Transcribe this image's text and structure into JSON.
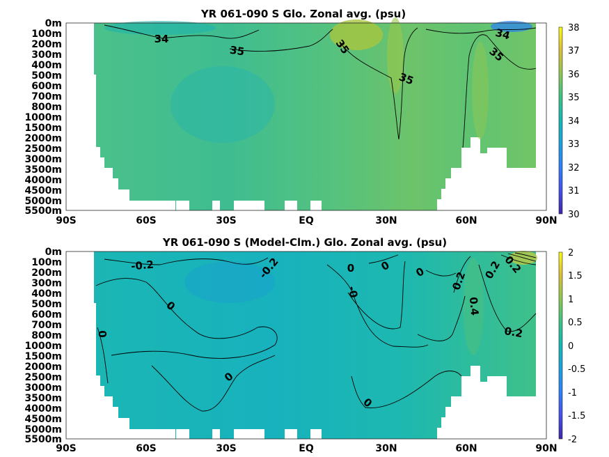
{
  "chart_data": [
    {
      "type": "heatmap",
      "title": "YR 061-090 S Glo. Zonal avg. (psu)",
      "x_ticks": [
        "90S",
        "60S",
        "30S",
        "EQ",
        "30N",
        "60N",
        "90N"
      ],
      "x_tick_values": [
        -90,
        -60,
        -30,
        0,
        30,
        60,
        90
      ],
      "y_ticks": [
        "0m",
        "100m",
        "200m",
        "300m",
        "400m",
        "500m",
        "600m",
        "700m",
        "800m",
        "1000m",
        "1500m",
        "2000m",
        "2500m",
        "3000m",
        "3500m",
        "4000m",
        "4500m",
        "5000m",
        "5500m"
      ],
      "colorbar": {
        "min": 30,
        "max": 38,
        "ticks": [
          "30",
          "31",
          "32",
          "33",
          "34",
          "35",
          "36",
          "37",
          "38"
        ]
      },
      "contour_labels": [
        {
          "text": "34",
          "lat": -55,
          "depth": "150m"
        },
        {
          "text": "35",
          "lat": -26,
          "depth": "250m"
        },
        {
          "text": "35",
          "lat": 15,
          "depth": "200m"
        },
        {
          "text": "35",
          "lat": 38,
          "depth": "550m"
        },
        {
          "text": "34",
          "lat": 75,
          "depth": "100m"
        },
        {
          "text": "35",
          "lat": 72,
          "depth": "300m"
        }
      ]
    },
    {
      "type": "heatmap",
      "title": "YR 061-090 S (Model-Clm.) Glo. Zonal avg. (psu)",
      "x_ticks": [
        "90S",
        "60S",
        "30S",
        "EQ",
        "30N",
        "60N",
        "90N"
      ],
      "x_tick_values": [
        -90,
        -60,
        -30,
        0,
        30,
        60,
        90
      ],
      "y_ticks": [
        "0m",
        "100m",
        "200m",
        "300m",
        "400m",
        "500m",
        "600m",
        "700m",
        "800m",
        "1000m",
        "1500m",
        "2000m",
        "2500m",
        "3000m",
        "3500m",
        "4000m",
        "4500m",
        "5000m",
        "5500m"
      ],
      "colorbar": {
        "min": -2,
        "max": 2,
        "ticks": [
          "-2",
          "-1.5",
          "-1",
          "-0.5",
          "0",
          "0.5",
          "1",
          "1.5",
          "2"
        ]
      },
      "contour_labels": [
        {
          "text": "-0.2",
          "lat": -57,
          "depth": "100m"
        },
        {
          "text": "-0.2",
          "lat": -17,
          "depth": "200m"
        },
        {
          "text": "0",
          "lat": -42,
          "depth": "500m"
        },
        {
          "text": "0",
          "lat": -79,
          "depth": "800m"
        },
        {
          "text": "0",
          "lat": -25,
          "depth": "2500m"
        },
        {
          "text": "0",
          "lat": 18,
          "depth": "100m"
        },
        {
          "text": "-0",
          "lat": 16,
          "depth": "400m"
        },
        {
          "text": "0",
          "lat": 29,
          "depth": "100m"
        },
        {
          "text": "0",
          "lat": 44,
          "depth": "100m"
        },
        {
          "text": "0.2",
          "lat": 64,
          "depth": "300m"
        },
        {
          "text": "0.4",
          "lat": 66,
          "depth": "600m"
        },
        {
          "text": "0.2",
          "lat": 76,
          "depth": "800m"
        },
        {
          "text": "0.2",
          "lat": 79,
          "depth": "200m"
        },
        {
          "text": "0.2",
          "lat": 82,
          "depth": "100m"
        },
        {
          "text": "0",
          "lat": 23,
          "depth": "3500m"
        }
      ]
    }
  ]
}
